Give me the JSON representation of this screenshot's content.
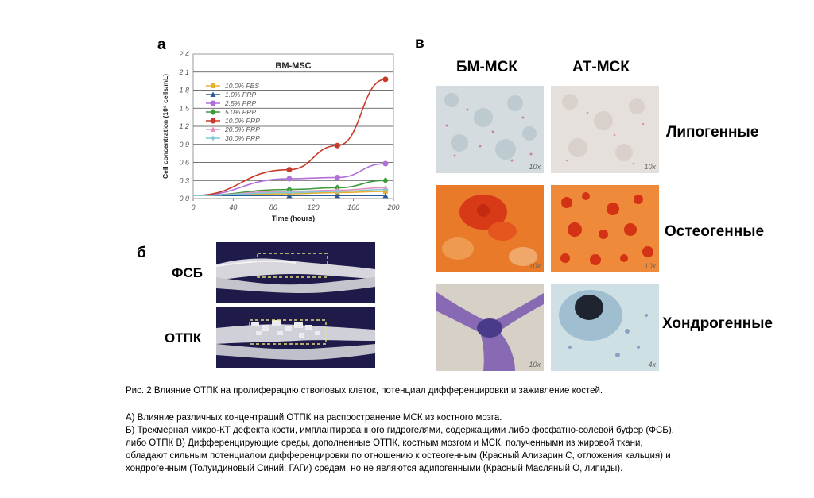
{
  "panels": {
    "a_label": "а",
    "b_label": "б",
    "v_label": "в"
  },
  "chart_data": {
    "type": "line",
    "title": "BM-MSC",
    "xlabel": "Time (hours)",
    "ylabel": "Cell concentration (10⁶ cells/mL)",
    "xlim": [
      0,
      200
    ],
    "ylim": [
      0,
      2.4
    ],
    "xticks": [
      0,
      40,
      80,
      120,
      160,
      200
    ],
    "yticks": [
      "0.0",
      "0.3",
      "0.6",
      "0.9",
      "1.2",
      "1.5",
      "1.8",
      "2.1",
      "2.4"
    ],
    "legend_position": "upper-left",
    "series": [
      {
        "name": "10.0% FBS",
        "color": "#e8b030",
        "marker": "square",
        "x": [
          0,
          96,
          144,
          192
        ],
        "y": [
          0.05,
          0.08,
          0.1,
          0.12
        ]
      },
      {
        "name": "1.0% PRP",
        "color": "#2a5a9a",
        "marker": "triangle",
        "x": [
          0,
          96,
          144,
          192
        ],
        "y": [
          0.05,
          0.05,
          0.05,
          0.05
        ]
      },
      {
        "name": "2.5% PRP",
        "color": "#b070d8",
        "marker": "circle",
        "x": [
          0,
          96,
          144,
          192
        ],
        "y": [
          0.05,
          0.33,
          0.35,
          0.58
        ]
      },
      {
        "name": "5.0% PRP",
        "color": "#3a9a3a",
        "marker": "diamond",
        "x": [
          0,
          96,
          144,
          192
        ],
        "y": [
          0.05,
          0.15,
          0.18,
          0.3
        ]
      },
      {
        "name": "10.0% PRP",
        "color": "#c83a2a",
        "marker": "circle",
        "x": [
          0,
          96,
          144,
          192
        ],
        "y": [
          0.05,
          0.48,
          0.88,
          1.98
        ]
      },
      {
        "name": "20.0% PRP",
        "color": "#e890c0",
        "marker": "triangle",
        "x": [
          0,
          96,
          144,
          192
        ],
        "y": [
          0.05,
          0.12,
          0.14,
          0.18
        ]
      },
      {
        "name": "30.0% PRP",
        "color": "#80c8d8",
        "marker": "star",
        "x": [
          0,
          96,
          144,
          192
        ],
        "y": [
          0.05,
          0.1,
          0.12,
          0.15
        ]
      }
    ]
  },
  "microct": {
    "row1_label": "ФСБ",
    "row2_label": "ОТПК"
  },
  "stains": {
    "col1": "БМ-МСК",
    "col2": "АТ-МСК",
    "row1": "Липогенные",
    "row2": "Остеогенные",
    "row3": "Хондрогенные",
    "mag_10x": "10x",
    "mag_4x": "4x"
  },
  "caption": {
    "line1": "Рис. 2 Влияние ОТПК на пролиферацию стволовых клеток, потенциал дифференцировки и заживление костей.",
    "line2": "А) Влияние различных концентраций ОТПК на распространение МСК из костного мозга.",
    "line3": "Б) Трехмерная микро-КТ дефекта кости, имплантированного гидрогелями, содержащими либо фосфатно-солевой буфер (ФСБ),",
    "line4": "либо ОТПК   В) Дифференцирующие среды, дополненные ОТПК, костным мозгом и МСК, полученными из жировой ткани,",
    "line5": "обладают сильным потенциалом дифференцировки по отношению к остеогенным (Красный Ализарин С, отложения кальция) и",
    "line6": "хондрогенным (Толуидиновый Синий, ГАГи) средам, но не являются адипогенными (Красный Масляный О, липиды)."
  }
}
